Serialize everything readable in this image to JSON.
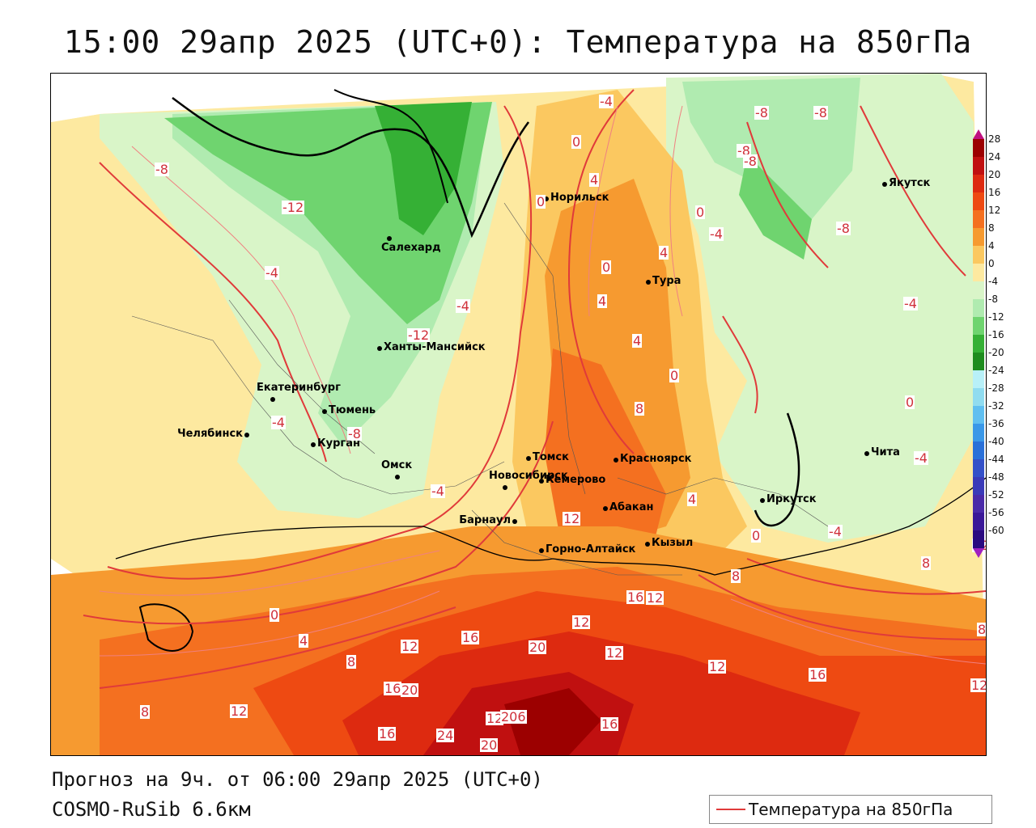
{
  "title": "15:00 29апр 2025 (UTC+0): Температура на 850гПа",
  "footer": {
    "forecast": "Прогноз на 9ч. от 06:00 29апр 2025 (UTC+0)",
    "model": "COSMO-RuSib 6.6км"
  },
  "legend": {
    "line_label": "Температура на 850гПа",
    "line_color": "#e03a3a"
  },
  "scale": {
    "labels": [
      "28",
      "24",
      "20",
      "16",
      "12",
      "8",
      "4",
      "0",
      "-4",
      "-8",
      "-12",
      "-16",
      "-20",
      "-24",
      "-28",
      "-32",
      "-36",
      "-40",
      "-44",
      "-48",
      "-52",
      "-56",
      "-60"
    ],
    "colors": [
      "#9c0000",
      "#c01010",
      "#dd2a10",
      "#ee4a12",
      "#f47020",
      "#f69a30",
      "#fbc860",
      "#fde9a0",
      "#d9f5c8",
      "#b0ebb0",
      "#6fd46f",
      "#35b035",
      "#1e8c1e",
      "#b8f0f8",
      "#90dcf0",
      "#60bff0",
      "#3a98e8",
      "#2a70d8",
      "#3450c8",
      "#3a3ab8",
      "#4a2aa8",
      "#3a1898",
      "#2a0a80"
    ]
  },
  "cities": [
    {
      "name": "Норильск"
    },
    {
      "name": "Салехард"
    },
    {
      "name": "Якутск"
    },
    {
      "name": "Тура"
    },
    {
      "name": "Ханты-Мансийск"
    },
    {
      "name": "Екатеринбург"
    },
    {
      "name": "Тюмень"
    },
    {
      "name": "Челябинск"
    },
    {
      "name": "Курган"
    },
    {
      "name": "Омск"
    },
    {
      "name": "Томск"
    },
    {
      "name": "Новосибирск"
    },
    {
      "name": "Кемерово"
    },
    {
      "name": "Красноярск"
    },
    {
      "name": "Барнаул"
    },
    {
      "name": "Абакан"
    },
    {
      "name": "Горно-Алтайск"
    },
    {
      "name": "Кызыл"
    },
    {
      "name": "Иркутск"
    },
    {
      "name": "Чита"
    }
  ],
  "contour_labels": [
    "-4",
    "-8",
    "-8",
    "-8",
    "-8",
    "0",
    "4",
    "0",
    "-12",
    "0",
    "-4",
    "-8",
    "-4",
    "4",
    "0",
    "-4",
    "4",
    "-4",
    "-12",
    "4",
    "0",
    "8",
    "-4",
    "0",
    "-8",
    "-4",
    "-4",
    "4",
    "-4",
    "0",
    "8",
    "12",
    "16",
    "12",
    "4",
    "8",
    "0",
    "12",
    "12",
    "8",
    "12",
    "16",
    "20",
    "12",
    "16",
    "12",
    "16",
    "8",
    "12",
    "20",
    "16",
    "24",
    "20",
    "12",
    "206",
    "16",
    "-8",
    "12",
    "8"
  ]
}
